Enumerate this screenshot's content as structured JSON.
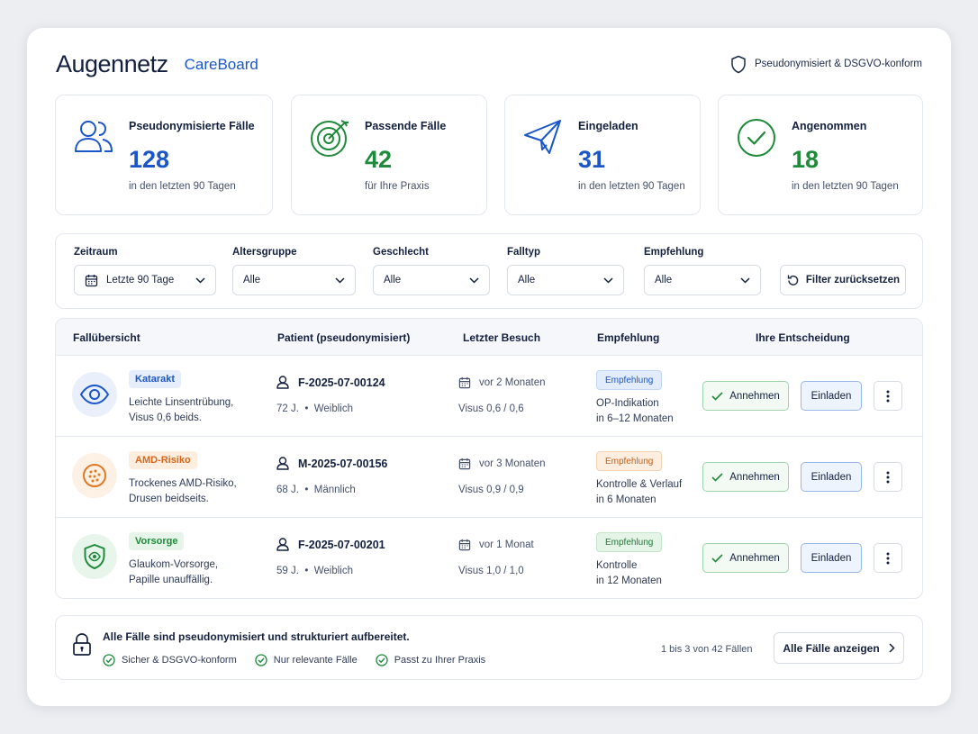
{
  "header": {
    "logo": "Augennetz",
    "product": "CareBoard",
    "compliance": "Pseudonymisiert & DSGVO-konform"
  },
  "stats": [
    {
      "label": "Pseudonymisierte Fälle",
      "value": "128",
      "sub": "in den letzten 90 Tagen",
      "icon": "users-icon",
      "color": "#1a56c9"
    },
    {
      "label": "Passende Fälle",
      "value": "42",
      "sub": "für Ihre Praxis",
      "icon": "target-icon",
      "color": "#1e8a3a"
    },
    {
      "label": "Eingeladen",
      "value": "31",
      "sub": "in den letzten 90 Tagen",
      "icon": "paper-plane-icon",
      "color": "#1a56c9"
    },
    {
      "label": "Angenommen",
      "value": "18",
      "sub": "in den letzten 90 Tagen",
      "icon": "check-circle-icon",
      "color": "#1e8a3a"
    }
  ],
  "filters": {
    "zeitraum": {
      "label": "Zeitraum",
      "value": "Letzte 90 Tage"
    },
    "altersgruppe": {
      "label": "Altersgruppe",
      "value": "Alle"
    },
    "geschlecht": {
      "label": "Geschlecht",
      "value": "Alle"
    },
    "falltyp": {
      "label": "Falltyp",
      "value": "Alle"
    },
    "empfehlung": {
      "label": "Empfehlung",
      "value": "Alle"
    },
    "reset_label": "Filter zurücksetzen"
  },
  "table": {
    "headers": {
      "overview": "Fallübersicht",
      "patient": "Patient (pseudonymisiert)",
      "last_visit": "Letzter Besuch",
      "recommendation": "Empfehlung",
      "decision": "Ihre Entscheidung"
    },
    "rows": [
      {
        "tag": "Katarakt",
        "desc1": "Leichte Linsentrübung,",
        "desc2": "Visus 0,6 beids.",
        "patient_id": "F-2025-07-00124",
        "age": "72 J.",
        "gender": "Weiblich",
        "last_visit": "vor 2 Monaten",
        "visus": "Visus 0,6 / 0,6",
        "rec_badge": "Empfehlung",
        "rec1": "OP-Indikation",
        "rec2": "in 6–12 Monaten",
        "accept": "Annehmen",
        "invite": "Einladen"
      },
      {
        "tag": "AMD-Risiko",
        "desc1": "Trockenes AMD-Risiko,",
        "desc2": "Drusen beidseits.",
        "patient_id": "M-2025-07-00156",
        "age": "68 J.",
        "gender": "Männlich",
        "last_visit": "vor 3 Monaten",
        "visus": "Visus 0,9 / 0,9",
        "rec_badge": "Empfehlung",
        "rec1": "Kontrolle & Verlauf",
        "rec2": "in 6 Monaten",
        "accept": "Annehmen",
        "invite": "Einladen"
      },
      {
        "tag": "Vorsorge",
        "desc1": "Glaukom-Vorsorge,",
        "desc2": "Papille unauffällig.",
        "patient_id": "F-2025-07-00201",
        "age": "59 J.",
        "gender": "Weiblich",
        "last_visit": "vor 1 Monat",
        "visus": "Visus 1,0 / 1,0",
        "rec_badge": "Empfehlung",
        "rec1": "Kontrolle",
        "rec2": "in 12 Monaten",
        "accept": "Annehmen",
        "invite": "Einladen"
      }
    ]
  },
  "footer": {
    "title": "Alle Fälle sind pseudonymisiert und strukturiert aufbereitet.",
    "checks": [
      "Sicher & DSGVO-konform",
      "Nur relevante Fälle",
      "Passt zu Ihrer Praxis"
    ],
    "pager": "1 bis 3 von 42  Fällen",
    "all_button": "Alle Fälle anzeigen"
  },
  "colors": {
    "brand_blue": "#1a56c9",
    "green": "#1e8a3a",
    "orange": "#e07a22"
  }
}
